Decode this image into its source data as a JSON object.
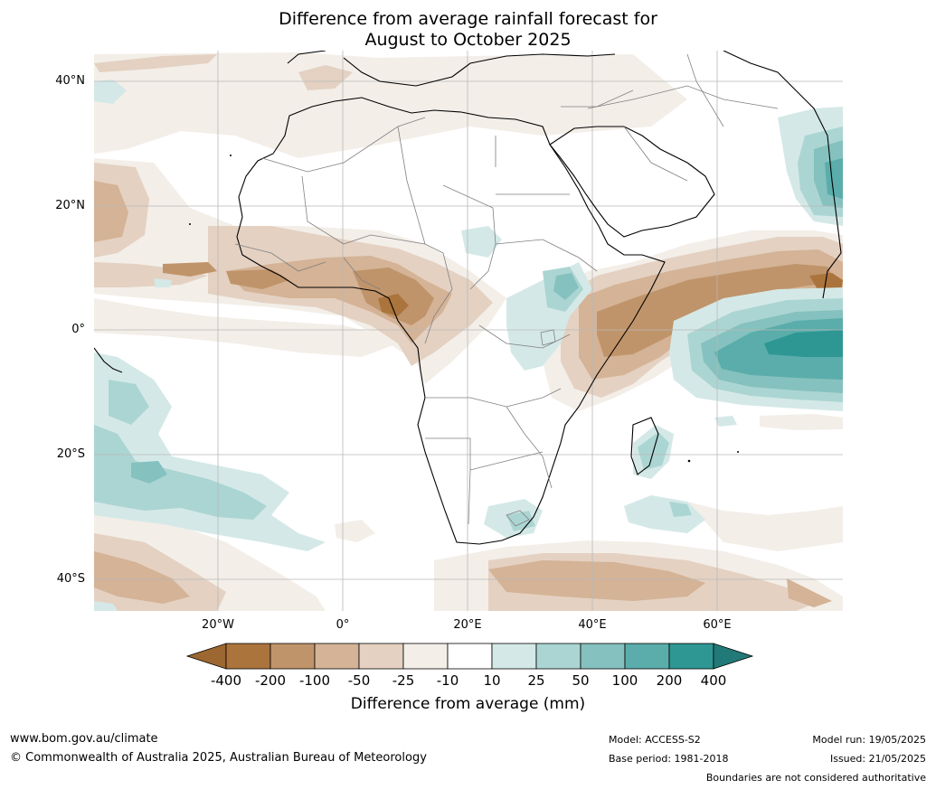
{
  "title": {
    "line1": "Difference from average rainfall forecast for",
    "line2": "August to October 2025"
  },
  "axes": {
    "lat_labels": [
      "40°N",
      "20°N",
      "0°",
      "20°S",
      "40°S"
    ],
    "lon_labels": [
      "20°W",
      "0°",
      "20°E",
      "40°E",
      "60°E"
    ]
  },
  "colorbar": {
    "ticks": [
      "-400",
      "-200",
      "-100",
      "-50",
      "-25",
      "-10",
      "10",
      "25",
      "50",
      "100",
      "200",
      "400"
    ],
    "colors": [
      "#9c6730",
      "#ab743d",
      "#c0946a",
      "#d4b396",
      "#e4d1c2",
      "#f3eee8",
      "#ffffff",
      "#d4e9e7",
      "#abd5d3",
      "#85c1be",
      "#5aadaa",
      "#2e9793",
      "#217a77"
    ],
    "label": "Difference from average (mm)"
  },
  "footer": {
    "website": "www.bom.gov.au/climate",
    "copyright": "© Commonwealth of Australia 2025, Australian Bureau of Meteorology",
    "model": "Model: ACCESS-S2",
    "base_period": "Base period: 1981-2018",
    "model_run": "Model run: 19/05/2025",
    "issued": "Issued: 21/05/2025",
    "disclaimer": "Boundaries are not considered authoritative"
  }
}
